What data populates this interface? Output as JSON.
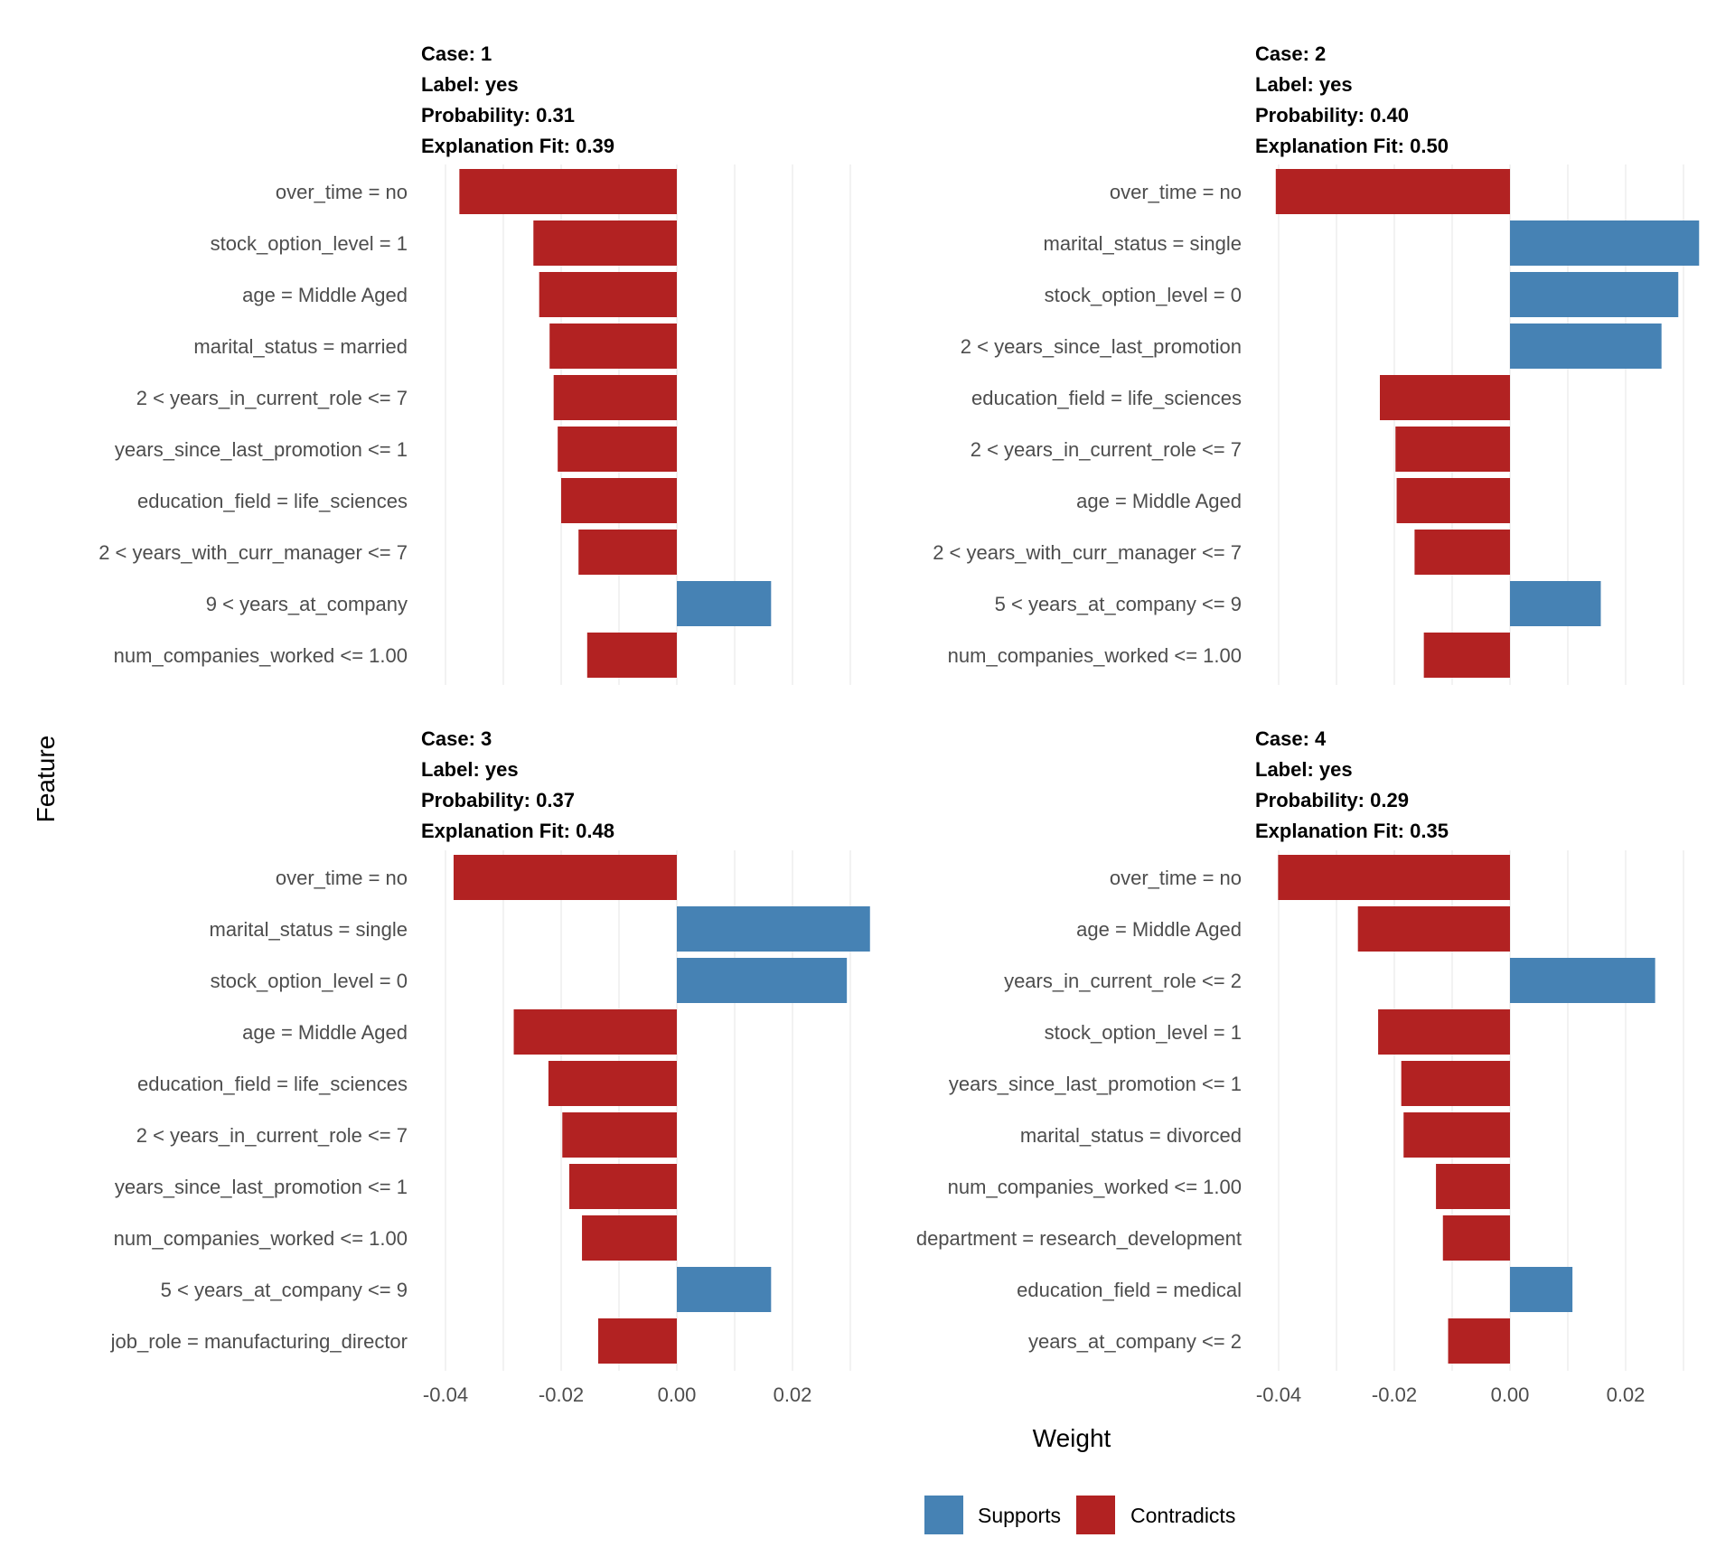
{
  "axis_labels": {
    "x": "Weight",
    "y": "Feature"
  },
  "legend": {
    "placement": "bottom",
    "items": [
      {
        "label": "Supports",
        "color": "#4682B4"
      },
      {
        "label": "Contradicts",
        "color": "#B22222"
      }
    ]
  },
  "colors": {
    "supports": "#4682B4",
    "contradicts": "#B22222",
    "grid": "#ECECEC"
  },
  "chart_data": [
    {
      "type": "bar",
      "orientation": "horizontal",
      "case_label": "Case: 1",
      "label_line": "Label: yes",
      "probability_line": "Probability: 0.31",
      "fit_line": "Explanation Fit: 0.39",
      "xlim": [
        -0.04,
        0.03
      ],
      "x_ticks": [
        "-0.04",
        "-0.02",
        "0.00",
        "0.02"
      ],
      "x_tick_values": [
        -0.04,
        -0.02,
        0.0,
        0.02
      ],
      "features": [
        "over_time = no",
        "stock_option_level = 1",
        "age = Middle Aged",
        "marital_status = married",
        "2 < years_in_current_role <= 7",
        "years_since_last_promotion <= 1",
        "education_field = life_sciences",
        "2 < years_with_curr_manager <= 7",
        "9 < years_at_company",
        "num_companies_worked <= 1.00"
      ],
      "values": [
        -0.0376,
        -0.0248,
        -0.0238,
        -0.022,
        -0.0213,
        -0.0206,
        -0.02,
        -0.017,
        0.0163,
        -0.0155
      ]
    },
    {
      "type": "bar",
      "orientation": "horizontal",
      "case_label": "Case: 2",
      "label_line": "Label: yes",
      "probability_line": "Probability: 0.40",
      "fit_line": "Explanation Fit: 0.50",
      "xlim": [
        -0.04,
        0.03
      ],
      "x_ticks": [
        "-0.04",
        "-0.02",
        "0.00",
        "0.02"
      ],
      "x_tick_values": [
        -0.04,
        -0.02,
        0.0,
        0.02
      ],
      "features": [
        "over_time = no",
        "marital_status = single",
        "stock_option_level = 0",
        "2 < years_since_last_promotion",
        "education_field = life_sciences",
        "2 < years_in_current_role <= 7",
        "age = Middle Aged",
        "2 < years_with_curr_manager <= 7",
        "5 < years_at_company <= 9",
        "num_companies_worked <= 1.00"
      ],
      "values": [
        -0.0405,
        0.0327,
        0.0291,
        0.0262,
        -0.0225,
        -0.0198,
        -0.0196,
        -0.0165,
        0.0157,
        -0.0149
      ]
    },
    {
      "type": "bar",
      "orientation": "horizontal",
      "case_label": "Case: 3",
      "label_line": "Label: yes",
      "probability_line": "Probability: 0.37",
      "fit_line": "Explanation Fit: 0.48",
      "xlim": [
        -0.04,
        0.03
      ],
      "x_ticks": [
        "-0.04",
        "-0.02",
        "0.00",
        "0.02"
      ],
      "x_tick_values": [
        -0.04,
        -0.02,
        0.0,
        0.02
      ],
      "features": [
        "over_time = no",
        "marital_status = single",
        "stock_option_level = 0",
        "age = Middle Aged",
        "education_field = life_sciences",
        "2 < years_in_current_role <= 7",
        "years_since_last_promotion <= 1",
        "num_companies_worked <= 1.00",
        "5 < years_at_company <= 9",
        "job_role = manufacturing_director"
      ],
      "values": [
        -0.0386,
        0.0334,
        0.0294,
        -0.0282,
        -0.0222,
        -0.0198,
        -0.0186,
        -0.0164,
        0.0163,
        -0.0136
      ]
    },
    {
      "type": "bar",
      "orientation": "horizontal",
      "case_label": "Case: 4",
      "label_line": "Label: yes",
      "probability_line": "Probability: 0.29",
      "fit_line": "Explanation Fit: 0.35",
      "xlim": [
        -0.04,
        0.03
      ],
      "x_ticks": [
        "-0.04",
        "-0.02",
        "0.00",
        "0.02"
      ],
      "x_tick_values": [
        -0.04,
        -0.02,
        0.0,
        0.02
      ],
      "features": [
        "over_time = no",
        "age = Middle Aged",
        "years_in_current_role <= 2",
        "stock_option_level = 1",
        "years_since_last_promotion <= 1",
        "marital_status = divorced",
        "num_companies_worked <= 1.00",
        "department = research_development",
        "education_field = medical",
        "years_at_company <= 2"
      ],
      "values": [
        -0.0401,
        -0.0263,
        0.0251,
        -0.0228,
        -0.0188,
        -0.0184,
        -0.0128,
        -0.0116,
        0.0108,
        -0.0107
      ]
    }
  ]
}
